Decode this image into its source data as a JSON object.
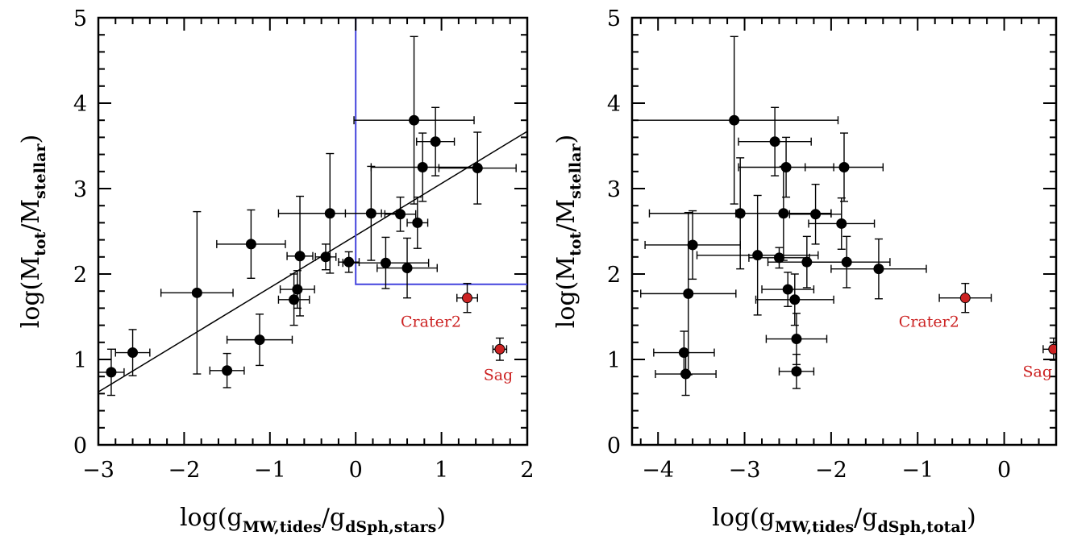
{
  "chart_data": [
    {
      "type": "scatter",
      "xlabel": {
        "prefix": "log(g",
        "sub1": "MW,tides",
        "mid": "/g",
        "sub2": "dSph,stars",
        "suffix": ")"
      },
      "ylabel": {
        "prefix": "log(M",
        "sub1": "tot",
        "mid": "/M",
        "sub2": "stellar",
        "suffix": ")"
      },
      "xlim": [
        -3,
        2
      ],
      "ylim": [
        0,
        5
      ],
      "xticks": [
        "−3",
        "−2",
        "−1",
        "0",
        "1",
        "2"
      ],
      "yticks": [
        "0",
        "1",
        "2",
        "3",
        "4",
        "5"
      ],
      "colors": {
        "points": "#000000",
        "highlight": "#cc2222",
        "box": "#4444dd",
        "fit": "#000000"
      },
      "fit_line": {
        "x": [
          -3,
          2
        ],
        "y": [
          0.62,
          3.67
        ]
      },
      "box": {
        "x0": 0,
        "y0": 1.88,
        "x1": 2,
        "y1": 5
      },
      "points": [
        {
          "x": -2.85,
          "y": 0.85,
          "xerr": 0.15,
          "yerr": 0.27
        },
        {
          "x": -2.6,
          "y": 1.08,
          "xerr": 0.2,
          "yerr": 0.27
        },
        {
          "x": -1.5,
          "y": 0.87,
          "xerr": 0.2,
          "yerr": 0.2
        },
        {
          "x": -1.85,
          "y": 1.78,
          "xerr": 0.42,
          "yerr": 0.95
        },
        {
          "x": -1.22,
          "y": 2.35,
          "xerr": 0.4,
          "yerr": 0.4
        },
        {
          "x": -1.12,
          "y": 1.23,
          "xerr": 0.38,
          "yerr": 0.3
        },
        {
          "x": -0.72,
          "y": 1.7,
          "xerr": 0.18,
          "yerr": 0.3
        },
        {
          "x": -0.68,
          "y": 1.82,
          "xerr": 0.2,
          "yerr": 0.22
        },
        {
          "x": -0.65,
          "y": 2.21,
          "xerr": 0.15,
          "yerr": 0.7
        },
        {
          "x": -0.35,
          "y": 2.2,
          "xerr": 0.12,
          "yerr": 0.15
        },
        {
          "x": -0.3,
          "y": 2.71,
          "xerr": 0.6,
          "yerr": 0.7
        },
        {
          "x": -0.08,
          "y": 2.14,
          "xerr": 0.12,
          "yerr": 0.12
        },
        {
          "x": 0.18,
          "y": 2.71,
          "xerr": 0.3,
          "yerr": 0.55
        },
        {
          "x": 0.35,
          "y": 2.13,
          "xerr": 0.5,
          "yerr": 0.3
        },
        {
          "x": 0.52,
          "y": 2.7,
          "xerr": 0.18,
          "yerr": 0.2
        },
        {
          "x": 0.6,
          "y": 2.07,
          "xerr": 0.35,
          "yerr": 0.35
        },
        {
          "x": 0.68,
          "y": 3.8,
          "xerr": 0.7,
          "yerr": 0.98
        },
        {
          "x": 0.72,
          "y": 2.6,
          "xerr": 0.12,
          "yerr": 0.3
        },
        {
          "x": 0.78,
          "y": 3.25,
          "xerr": 0.6,
          "yerr": 0.4
        },
        {
          "x": 0.93,
          "y": 3.55,
          "xerr": 0.22,
          "yerr": 0.4
        },
        {
          "x": 1.42,
          "y": 3.24,
          "xerr": 0.45,
          "yerr": 0.42
        }
      ],
      "highlight_points": [
        {
          "x": 1.3,
          "y": 1.72,
          "xerr": 0.12,
          "yerr": 0.17,
          "label": "Crater2"
        },
        {
          "x": 1.68,
          "y": 1.12,
          "xerr": 0.08,
          "yerr": 0.13,
          "label": "Sag"
        }
      ]
    },
    {
      "type": "scatter",
      "xlabel": {
        "prefix": "log(g",
        "sub1": "MW,tides",
        "mid": "/g",
        "sub2": "dSph,total",
        "suffix": ")"
      },
      "ylabel": {
        "prefix": "log(M",
        "sub1": "tot",
        "mid": "/M",
        "sub2": "stellar",
        "suffix": ")"
      },
      "xlim": [
        -4.3,
        0.6
      ],
      "ylim": [
        0,
        5
      ],
      "xticks": [
        "−4",
        "−3",
        "−2",
        "−1",
        "0"
      ],
      "xtick_values": [
        -4,
        -3,
        -2,
        -1,
        0
      ],
      "yticks": [
        "0",
        "1",
        "2",
        "3",
        "4",
        "5"
      ],
      "points": [
        {
          "x": -3.7,
          "y": 1.08,
          "xerr": 0.35,
          "yerr": 0.25
        },
        {
          "x": -3.68,
          "y": 0.83,
          "xerr": 0.35,
          "yerr": 0.25
        },
        {
          "x": -3.65,
          "y": 1.77,
          "xerr": 0.55,
          "yerr": 0.95
        },
        {
          "x": -3.6,
          "y": 2.34,
          "xerr": 0.55,
          "yerr": 0.4
        },
        {
          "x": -3.12,
          "y": 3.8,
          "xerr": 1.2,
          "yerr": 0.98
        },
        {
          "x": -3.05,
          "y": 2.71,
          "xerr": 1.05,
          "yerr": 0.65
        },
        {
          "x": -2.85,
          "y": 2.22,
          "xerr": 0.7,
          "yerr": 0.7
        },
        {
          "x": -2.65,
          "y": 3.55,
          "xerr": 0.42,
          "yerr": 0.4
        },
        {
          "x": -2.6,
          "y": 2.19,
          "xerr": 0.35,
          "yerr": 0.12
        },
        {
          "x": -2.55,
          "y": 2.71,
          "xerr": 0.55,
          "yerr": 0.55
        },
        {
          "x": -2.52,
          "y": 3.25,
          "xerr": 0.55,
          "yerr": 0.35
        },
        {
          "x": -2.5,
          "y": 1.82,
          "xerr": 0.3,
          "yerr": 0.2
        },
        {
          "x": -2.42,
          "y": 1.7,
          "xerr": 0.45,
          "yerr": 0.3
        },
        {
          "x": -2.4,
          "y": 1.24,
          "xerr": 0.35,
          "yerr": 0.3
        },
        {
          "x": -2.4,
          "y": 0.86,
          "xerr": 0.2,
          "yerr": 0.2
        },
        {
          "x": -2.28,
          "y": 2.14,
          "xerr": 0.45,
          "yerr": 0.3
        },
        {
          "x": -2.18,
          "y": 2.7,
          "xerr": 0.3,
          "yerr": 0.35
        },
        {
          "x": -1.88,
          "y": 2.59,
          "xerr": 0.38,
          "yerr": 0.3
        },
        {
          "x": -1.85,
          "y": 3.25,
          "xerr": 0.45,
          "yerr": 0.4
        },
        {
          "x": -1.82,
          "y": 2.14,
          "xerr": 0.5,
          "yerr": 0.3
        },
        {
          "x": -1.45,
          "y": 2.06,
          "xerr": 0.55,
          "yerr": 0.35
        }
      ],
      "highlight_points": [
        {
          "x": -0.45,
          "y": 1.72,
          "xerr": 0.3,
          "yerr": 0.17,
          "label": "Crater2"
        },
        {
          "x": 0.57,
          "y": 1.12,
          "xerr": 0.12,
          "yerr": 0.13,
          "label": "Sag"
        }
      ]
    }
  ]
}
